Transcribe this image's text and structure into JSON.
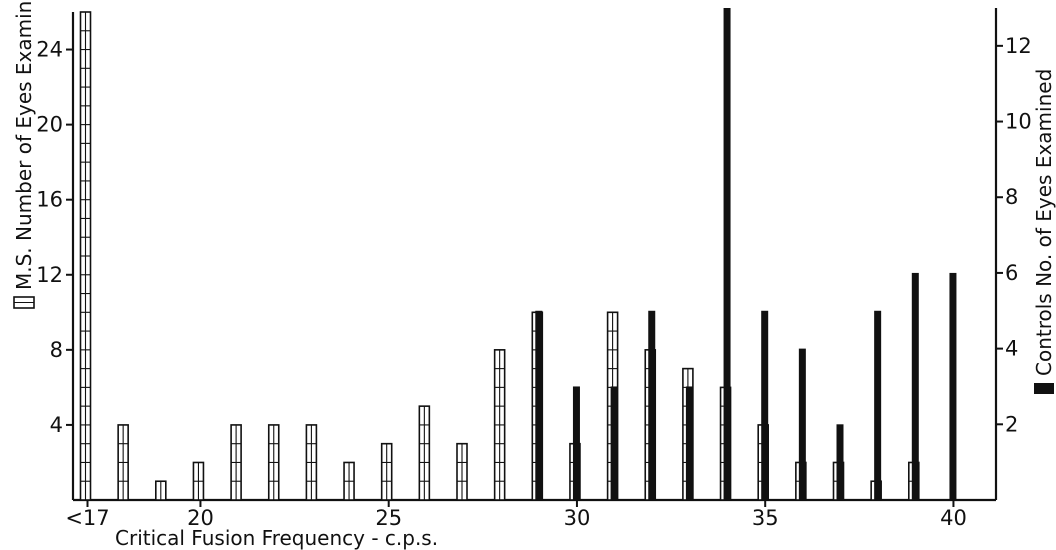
{
  "chart_data": {
    "type": "bar",
    "xlabel": "Critical Fusion Frequency - c.p.s.",
    "xlim": [
      16.4,
      40.4
    ],
    "x_ticks": [
      {
        "value": 17,
        "label": "<17"
      },
      {
        "value": 20,
        "label": "20"
      },
      {
        "value": 25,
        "label": "25"
      },
      {
        "value": 30,
        "label": "30"
      },
      {
        "value": 35,
        "label": "35"
      },
      {
        "value": 40,
        "label": "40"
      }
    ],
    "y_left": {
      "label": "M.S. Number of Eyes Examined",
      "range": [
        0,
        26
      ],
      "ticks": [
        4,
        8,
        12,
        16,
        20,
        24
      ]
    },
    "y_right": {
      "label": "Controls No. of Eyes Examined",
      "range": [
        0,
        13
      ],
      "ticks": [
        2,
        4,
        6,
        8,
        10,
        12
      ]
    },
    "series": [
      {
        "name": "M.S.",
        "axis": "left",
        "style": "open-segmented",
        "x": [
          17,
          18,
          19,
          20,
          21,
          22,
          23,
          24,
          25,
          26,
          27,
          28,
          29,
          30,
          31,
          32,
          33,
          34,
          35,
          36,
          37,
          38,
          39
        ],
        "values": [
          26,
          4,
          1,
          2,
          4,
          4,
          4,
          2,
          3,
          5,
          3,
          8,
          10,
          3,
          10,
          8,
          7,
          6,
          4,
          2,
          2,
          1,
          2
        ]
      },
      {
        "name": "Controls",
        "axis": "right",
        "style": "solid",
        "x": [
          29,
          30,
          31,
          32,
          33,
          34,
          35,
          36,
          37,
          38,
          39,
          40
        ],
        "values": [
          5,
          3,
          3,
          5,
          3,
          13,
          5,
          4,
          2,
          5,
          6,
          6
        ]
      }
    ]
  }
}
